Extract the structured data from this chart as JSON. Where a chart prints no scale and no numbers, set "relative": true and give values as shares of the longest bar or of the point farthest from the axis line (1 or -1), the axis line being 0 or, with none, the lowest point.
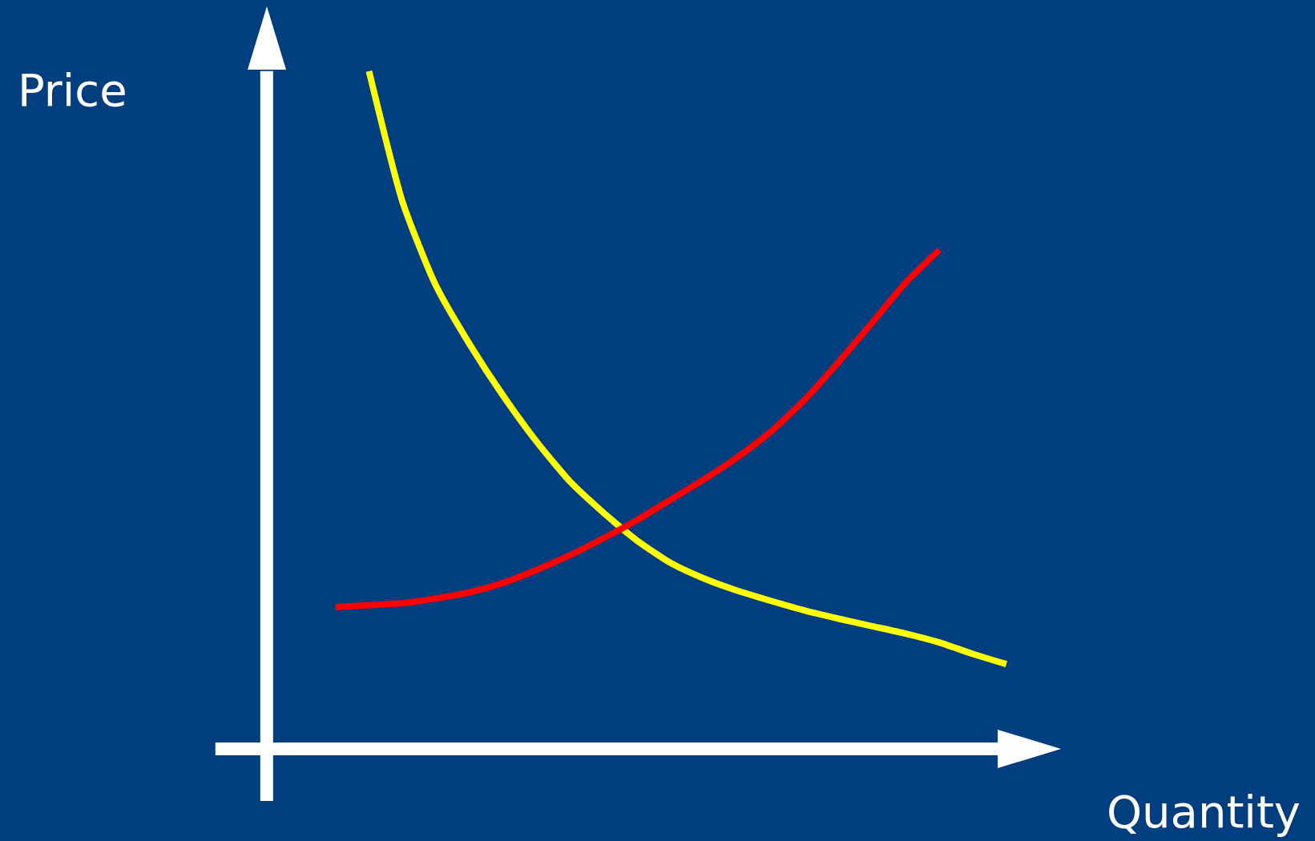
{
  "chart_data": {
    "type": "line",
    "relative": true,
    "xlabel": "Quantity",
    "ylabel": "Price",
    "categories": [
      null,
      null,
      null,
      null,
      null,
      null,
      null,
      null,
      null,
      null,
      null,
      null,
      null,
      null,
      null,
      null,
      null,
      null,
      null,
      null,
      null
    ],
    "series": [
      {
        "color": "#ffff00",
        "values": [
          null,
          1,
          0.807,
          0.683,
          0.597,
          0.521,
          0.453,
          0.394,
          0.348,
          0.307,
          0.274,
          0.251,
          0.233,
          0.218,
          0.204,
          0.192,
          0.181,
          0.17,
          0.157,
          0.14,
          0.125
        ]
      },
      {
        "color": "#ff0000",
        "values": [
          0.209,
          0.212,
          0.215,
          0.222,
          0.231,
          0.245,
          0.264,
          0.286,
          0.311,
          0.338,
          0.368,
          0.398,
          0.431,
          0.469,
          0.516,
          0.571,
          0.629,
          0.688,
          0.736,
          null,
          null
        ]
      }
    ],
    "grid": false,
    "marker": "none",
    "line_style": "solid"
  }
}
